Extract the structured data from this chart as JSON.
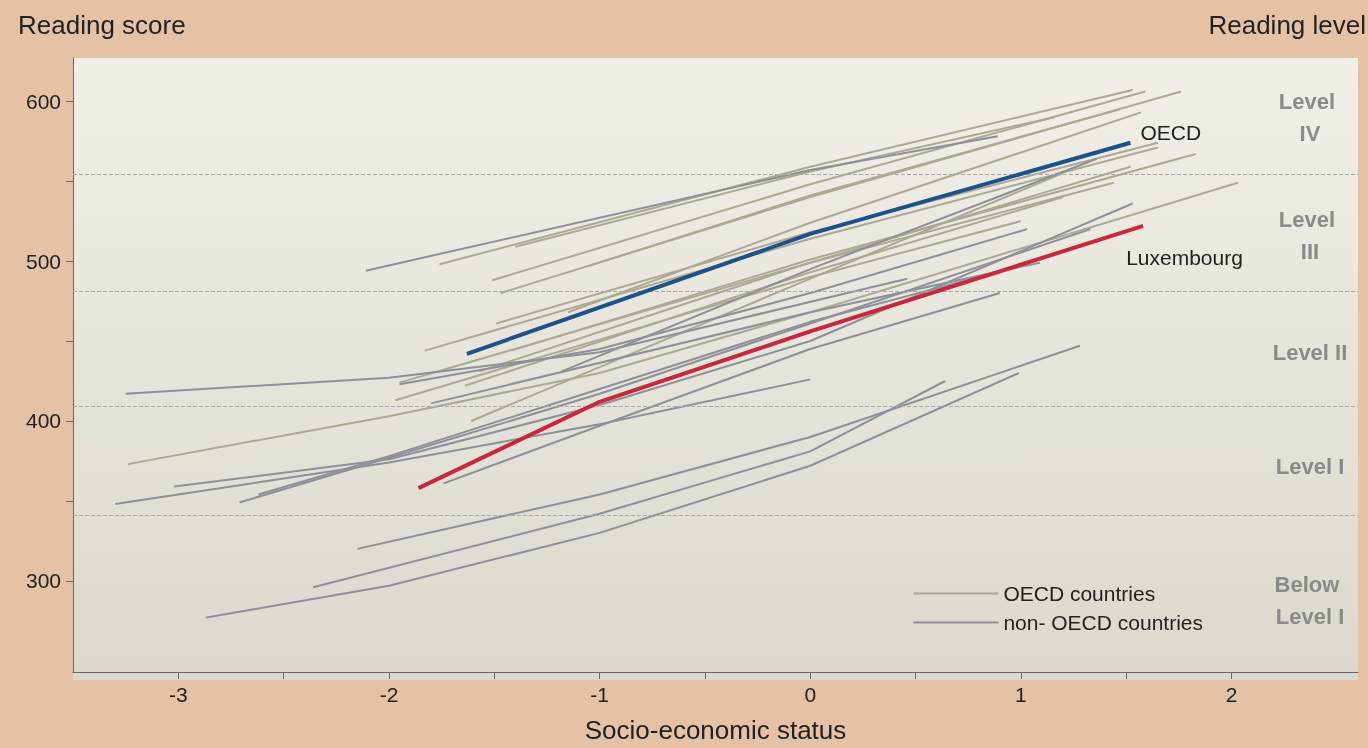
{
  "chart_data": {
    "type": "line",
    "xlabel": "Socio-economic status",
    "ylabel": "Reading score",
    "annotations": [
      "Reading level",
      "Level IV",
      "Level III",
      "Level II",
      "Level I",
      "Below Level I"
    ],
    "xlim": [
      -3.5,
      2.6
    ],
    "ylim": [
      243,
      627
    ],
    "xticks": [
      -3,
      {
        "value": -2.5,
        "label": null
      },
      -2,
      {
        "value": -1.5,
        "label": null
      },
      -1,
      {
        "value": -0.5,
        "label": null
      },
      0,
      {
        "value": 0.5,
        "label": null
      },
      1,
      {
        "value": 1.5,
        "label": null
      },
      2
    ],
    "yticks": [
      300,
      {
        "value": 350,
        "label": null
      },
      400,
      {
        "value": 450,
        "label": null
      },
      500,
      {
        "value": 550,
        "label": null
      },
      600
    ],
    "grid": false,
    "marker": "none",
    "legend": "bottom right",
    "ref_lines": [
      {
        "axis": "y",
        "value": 341,
        "line_style": "dashed",
        "color": "#a9a9a9"
      },
      {
        "axis": "y",
        "value": 409,
        "line_style": "dashed",
        "color": "#a9a9a9"
      },
      {
        "axis": "y",
        "value": 481,
        "line_style": "dashed",
        "color": "#a9a9a9"
      },
      {
        "axis": "y",
        "value": 554,
        "line_style": "dashed",
        "color": "#a9a9a9"
      }
    ],
    "series": [
      {
        "name": "OECD countries",
        "color": "#aca893",
        "x": [
          -1.4,
          0,
          1.16
        ],
        "values": [
          509,
          556,
          590
        ]
      },
      {
        "color": "#aca893",
        "x": [
          -1.76,
          0,
          1.53
        ],
        "values": [
          498,
          559,
          607
        ]
      },
      {
        "color": "#aca893",
        "x": [
          -1.05,
          0,
          1.47
        ],
        "values": [
          497,
          541,
          595
        ]
      },
      {
        "color": "#aca893",
        "x": [
          -1.51,
          0,
          1.59
        ],
        "values": [
          488,
          548,
          606
        ]
      },
      {
        "color": "#aca893",
        "x": [
          -1.47,
          0,
          1.76
        ],
        "values": [
          480,
          540,
          606
        ]
      },
      {
        "color": "#aca893",
        "x": [
          -1.15,
          0,
          1.57
        ],
        "values": [
          468,
          524,
          593
        ]
      },
      {
        "color": "#aca893",
        "x": [
          -1.49,
          0,
          1.65
        ],
        "values": [
          461,
          518,
          574
        ]
      },
      {
        "color": "#aca893",
        "x": [
          -1.83,
          0,
          1.65
        ],
        "values": [
          444,
          514,
          571
        ]
      },
      {
        "color": "#aca893",
        "x": [
          -1.42,
          0,
          1.83
        ],
        "values": [
          444,
          501,
          567
        ]
      },
      {
        "color": "#aca893",
        "x": [
          -1.57,
          0,
          1.52
        ],
        "values": [
          431,
          499,
          559
        ]
      },
      {
        "color": "#aca893",
        "x": [
          -1.95,
          0,
          1.44
        ],
        "values": [
          424,
          499,
          549
        ]
      },
      {
        "color": "#aca893",
        "x": [
          -1.64,
          0,
          1.2
        ],
        "values": [
          422,
          493,
          540
        ]
      },
      {
        "color": "#aca893",
        "x": [
          -1.97,
          0,
          1.0
        ],
        "values": [
          413,
          490,
          525
        ]
      },
      {
        "color": "#aca893",
        "x": [
          -1.61,
          0,
          1.2
        ],
        "values": [
          400,
          489,
          555
        ]
      },
      {
        "color": "#aca893",
        "x": [
          -3.24,
          -2,
          -1,
          0,
          2.03
        ],
        "values": [
          373,
          403,
          430,
          468,
          549
        ]
      },
      {
        "name": "non- OECD countries",
        "color": "#8e9099",
        "x": [
          -2.11,
          0,
          0.89
        ],
        "values": [
          494,
          557,
          578
        ]
      },
      {
        "color": "#8e9099",
        "x": [
          -3.25,
          -2,
          -1,
          0.46
        ],
        "values": [
          417,
          427,
          443,
          489
        ]
      },
      {
        "color": "#8e9099",
        "x": [
          -3.3,
          -2,
          -1,
          0
        ],
        "values": [
          348,
          374,
          398,
          426
        ]
      },
      {
        "color": "#8e9099",
        "x": [
          -3.02,
          -2,
          -1,
          0,
          1.53
        ],
        "values": [
          359,
          376,
          410,
          450,
          536
        ]
      },
      {
        "color": "#8e9099",
        "x": [
          -2.71,
          -2,
          -1,
          0,
          1.33
        ],
        "values": [
          349,
          377,
          417,
          461,
          520
        ]
      },
      {
        "color": "#8e9099",
        "x": [
          -2.62,
          -2,
          -1,
          0,
          1.03
        ],
        "values": [
          354,
          378,
          420,
          462,
          498
        ]
      },
      {
        "color": "#8e9099",
        "x": [
          -1.74,
          -1,
          0,
          0.9
        ],
        "values": [
          361,
          397,
          445,
          480
        ]
      },
      {
        "color": "#8e9099",
        "x": [
          -2.15,
          -1,
          0,
          1.28
        ],
        "values": [
          320,
          354,
          390,
          447
        ]
      },
      {
        "color": "#8e9099",
        "x": [
          -2.36,
          -1,
          0,
          0.64
        ],
        "values": [
          296,
          342,
          381,
          425
        ]
      },
      {
        "color": "#8e9099",
        "x": [
          -2.87,
          -2,
          -1,
          0,
          0.99
        ],
        "values": [
          277,
          297,
          330,
          372,
          430
        ]
      },
      {
        "color": "#8e9099",
        "x": [
          -1.8,
          0,
          1.09
        ],
        "values": [
          411,
          468,
          499
        ]
      },
      {
        "color": "#8e9099",
        "x": [
          -1.18,
          0,
          1.36
        ],
        "values": [
          431,
          495,
          564
        ]
      },
      {
        "color": "#8e9099",
        "x": [
          -1.95,
          -1,
          0,
          1.03
        ],
        "values": [
          423,
          445,
          480,
          520
        ]
      },
      {
        "name": "OECD",
        "color": "#1c5189",
        "x": [
          -1.63,
          0,
          1.52
        ],
        "values": [
          442,
          517,
          574
        ]
      },
      {
        "name": "Luxembourg",
        "color": "#c8283c",
        "x": [
          -1.86,
          -1,
          0,
          1.58
        ],
        "values": [
          358,
          412,
          456,
          522
        ]
      }
    ]
  }
}
